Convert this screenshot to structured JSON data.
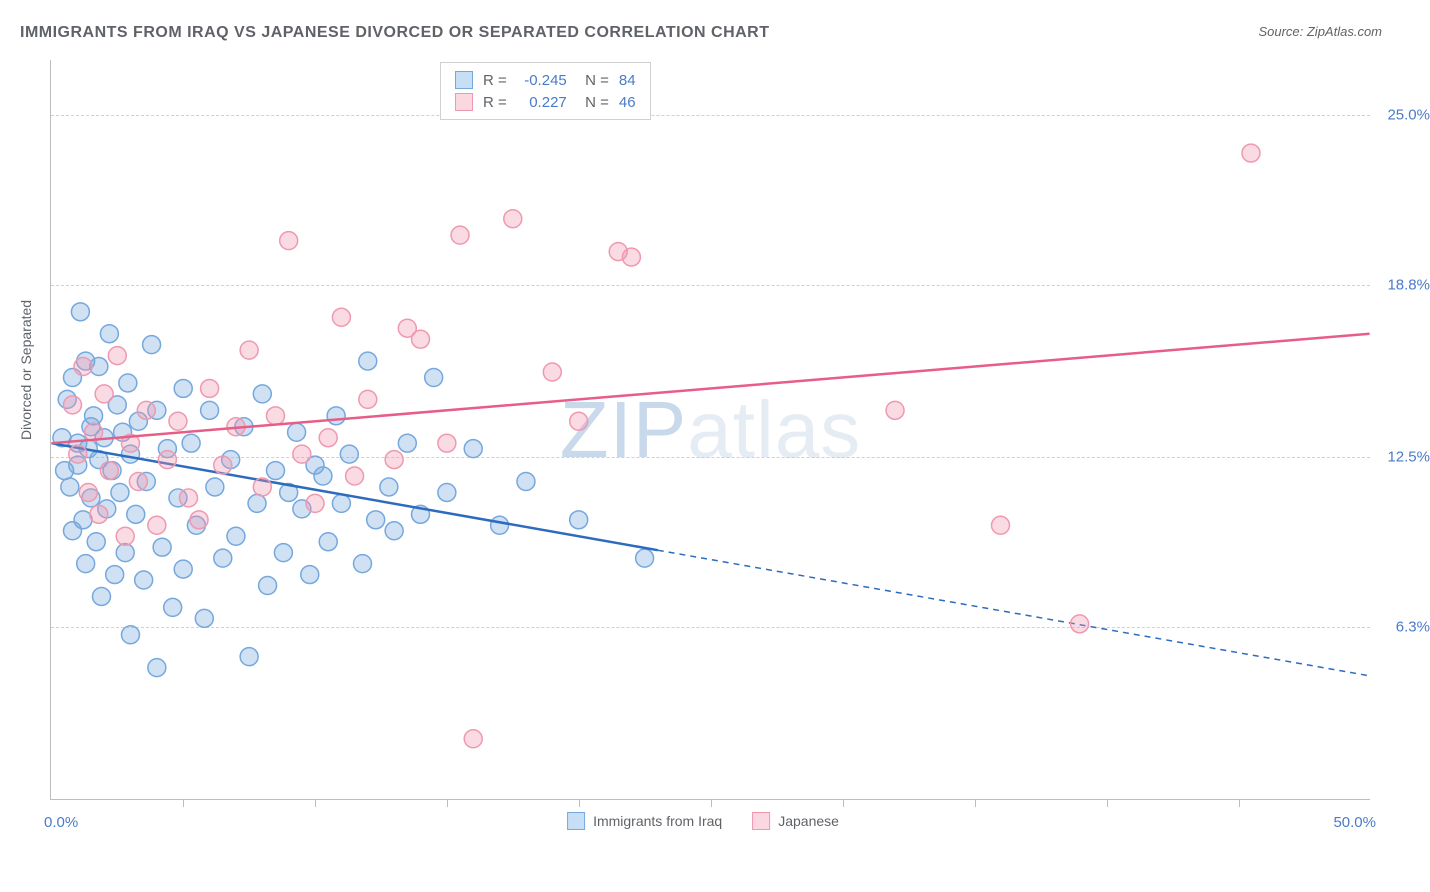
{
  "title": "IMMIGRANTS FROM IRAQ VS JAPANESE DIVORCED OR SEPARATED CORRELATION CHART",
  "source": "Source: ZipAtlas.com",
  "y_axis_label": "Divorced or Separated",
  "watermark": {
    "part1": "ZIP",
    "part2": "atlas"
  },
  "chart": {
    "type": "scatter",
    "xlim": [
      0,
      50
    ],
    "ylim": [
      0,
      27
    ],
    "x_origin_label": "0.0%",
    "x_max_label": "50.0%",
    "y_ticks": [
      {
        "value": 6.3,
        "label": "6.3%"
      },
      {
        "value": 12.5,
        "label": "12.5%"
      },
      {
        "value": 18.8,
        "label": "18.8%"
      },
      {
        "value": 25.0,
        "label": "25.0%"
      }
    ],
    "x_tick_positions": [
      5,
      10,
      15,
      20,
      25,
      30,
      35,
      40,
      45
    ],
    "background_color": "#ffffff",
    "grid_color": "#d0d0d0",
    "marker_radius": 9,
    "marker_stroke_width": 1.5,
    "series": [
      {
        "name": "Immigrants from Iraq",
        "fill_color": "rgba(118,168,222,0.35)",
        "stroke_color": "#76a8de",
        "legend_swatch_fill": "#c7dff5",
        "legend_swatch_border": "#76a8de",
        "R": "-0.245",
        "N": "84",
        "trend": {
          "color": "#2d6bbf",
          "width": 2.5,
          "start_y_at_x0": 13.0,
          "end_y_at_xmax": 4.5,
          "solid_until_x": 23,
          "dashed_after": true
        },
        "points": [
          [
            0.4,
            13.2
          ],
          [
            0.5,
            12.0
          ],
          [
            0.6,
            14.6
          ],
          [
            0.7,
            11.4
          ],
          [
            0.8,
            15.4
          ],
          [
            0.8,
            9.8
          ],
          [
            1.0,
            13.0
          ],
          [
            1.0,
            12.2
          ],
          [
            1.1,
            17.8
          ],
          [
            1.2,
            10.2
          ],
          [
            1.3,
            16.0
          ],
          [
            1.3,
            8.6
          ],
          [
            1.4,
            12.8
          ],
          [
            1.5,
            13.6
          ],
          [
            1.5,
            11.0
          ],
          [
            1.6,
            14.0
          ],
          [
            1.7,
            9.4
          ],
          [
            1.8,
            12.4
          ],
          [
            1.8,
            15.8
          ],
          [
            1.9,
            7.4
          ],
          [
            2.0,
            13.2
          ],
          [
            2.1,
            10.6
          ],
          [
            2.2,
            17.0
          ],
          [
            2.3,
            12.0
          ],
          [
            2.4,
            8.2
          ],
          [
            2.5,
            14.4
          ],
          [
            2.6,
            11.2
          ],
          [
            2.7,
            13.4
          ],
          [
            2.8,
            9.0
          ],
          [
            2.9,
            15.2
          ],
          [
            3.0,
            6.0
          ],
          [
            3.0,
            12.6
          ],
          [
            3.2,
            10.4
          ],
          [
            3.3,
            13.8
          ],
          [
            3.5,
            8.0
          ],
          [
            3.6,
            11.6
          ],
          [
            3.8,
            16.6
          ],
          [
            4.0,
            4.8
          ],
          [
            4.0,
            14.2
          ],
          [
            4.2,
            9.2
          ],
          [
            4.4,
            12.8
          ],
          [
            4.6,
            7.0
          ],
          [
            4.8,
            11.0
          ],
          [
            5.0,
            15.0
          ],
          [
            5.0,
            8.4
          ],
          [
            5.3,
            13.0
          ],
          [
            5.5,
            10.0
          ],
          [
            5.8,
            6.6
          ],
          [
            6.0,
            14.2
          ],
          [
            6.2,
            11.4
          ],
          [
            6.5,
            8.8
          ],
          [
            6.8,
            12.4
          ],
          [
            7.0,
            9.6
          ],
          [
            7.3,
            13.6
          ],
          [
            7.5,
            5.2
          ],
          [
            7.8,
            10.8
          ],
          [
            8.0,
            14.8
          ],
          [
            8.2,
            7.8
          ],
          [
            8.5,
            12.0
          ],
          [
            8.8,
            9.0
          ],
          [
            9.0,
            11.2
          ],
          [
            9.3,
            13.4
          ],
          [
            9.5,
            10.6
          ],
          [
            9.8,
            8.2
          ],
          [
            10.0,
            12.2
          ],
          [
            10.3,
            11.8
          ],
          [
            10.5,
            9.4
          ],
          [
            10.8,
            14.0
          ],
          [
            11.0,
            10.8
          ],
          [
            11.3,
            12.6
          ],
          [
            11.8,
            8.6
          ],
          [
            12.0,
            16.0
          ],
          [
            12.3,
            10.2
          ],
          [
            12.8,
            11.4
          ],
          [
            13.0,
            9.8
          ],
          [
            13.5,
            13.0
          ],
          [
            14.0,
            10.4
          ],
          [
            14.5,
            15.4
          ],
          [
            15.0,
            11.2
          ],
          [
            16.0,
            12.8
          ],
          [
            17.0,
            10.0
          ],
          [
            18.0,
            11.6
          ],
          [
            20.0,
            10.2
          ],
          [
            22.5,
            8.8
          ]
        ]
      },
      {
        "name": "Japanese",
        "fill_color": "rgba(240,150,175,0.35)",
        "stroke_color": "#ef99b0",
        "legend_swatch_fill": "#fad7e1",
        "legend_swatch_border": "#ef99b0",
        "R": "0.227",
        "N": "46",
        "trend": {
          "color": "#e85d87",
          "width": 2.5,
          "start_y_at_x0": 13.0,
          "end_y_at_xmax": 17.0,
          "solid_until_x": 50,
          "dashed_after": false
        },
        "points": [
          [
            0.8,
            14.4
          ],
          [
            1.0,
            12.6
          ],
          [
            1.2,
            15.8
          ],
          [
            1.4,
            11.2
          ],
          [
            1.6,
            13.4
          ],
          [
            1.8,
            10.4
          ],
          [
            2.0,
            14.8
          ],
          [
            2.2,
            12.0
          ],
          [
            2.5,
            16.2
          ],
          [
            2.8,
            9.6
          ],
          [
            3.0,
            13.0
          ],
          [
            3.3,
            11.6
          ],
          [
            3.6,
            14.2
          ],
          [
            4.0,
            10.0
          ],
          [
            4.4,
            12.4
          ],
          [
            4.8,
            13.8
          ],
          [
            5.2,
            11.0
          ],
          [
            5.6,
            10.2
          ],
          [
            6.0,
            15.0
          ],
          [
            6.5,
            12.2
          ],
          [
            7.0,
            13.6
          ],
          [
            7.5,
            16.4
          ],
          [
            8.0,
            11.4
          ],
          [
            8.5,
            14.0
          ],
          [
            9.0,
            20.4
          ],
          [
            9.5,
            12.6
          ],
          [
            10.0,
            10.8
          ],
          [
            10.5,
            13.2
          ],
          [
            11.0,
            17.6
          ],
          [
            11.5,
            11.8
          ],
          [
            12.0,
            14.6
          ],
          [
            13.0,
            12.4
          ],
          [
            13.5,
            17.2
          ],
          [
            14.0,
            16.8
          ],
          [
            15.0,
            13.0
          ],
          [
            15.5,
            20.6
          ],
          [
            16.0,
            2.2
          ],
          [
            17.5,
            21.2
          ],
          [
            19.0,
            15.6
          ],
          [
            20.0,
            13.8
          ],
          [
            21.5,
            20.0
          ],
          [
            22.0,
            19.8
          ],
          [
            32.0,
            14.2
          ],
          [
            36.0,
            10.0
          ],
          [
            39.0,
            6.4
          ],
          [
            45.5,
            23.6
          ]
        ]
      }
    ]
  },
  "bottom_legend": [
    {
      "label": "Immigrants from Iraq",
      "fill": "#c7dff5",
      "border": "#76a8de"
    },
    {
      "label": "Japanese",
      "fill": "#fad7e1",
      "border": "#ef99b0"
    }
  ]
}
